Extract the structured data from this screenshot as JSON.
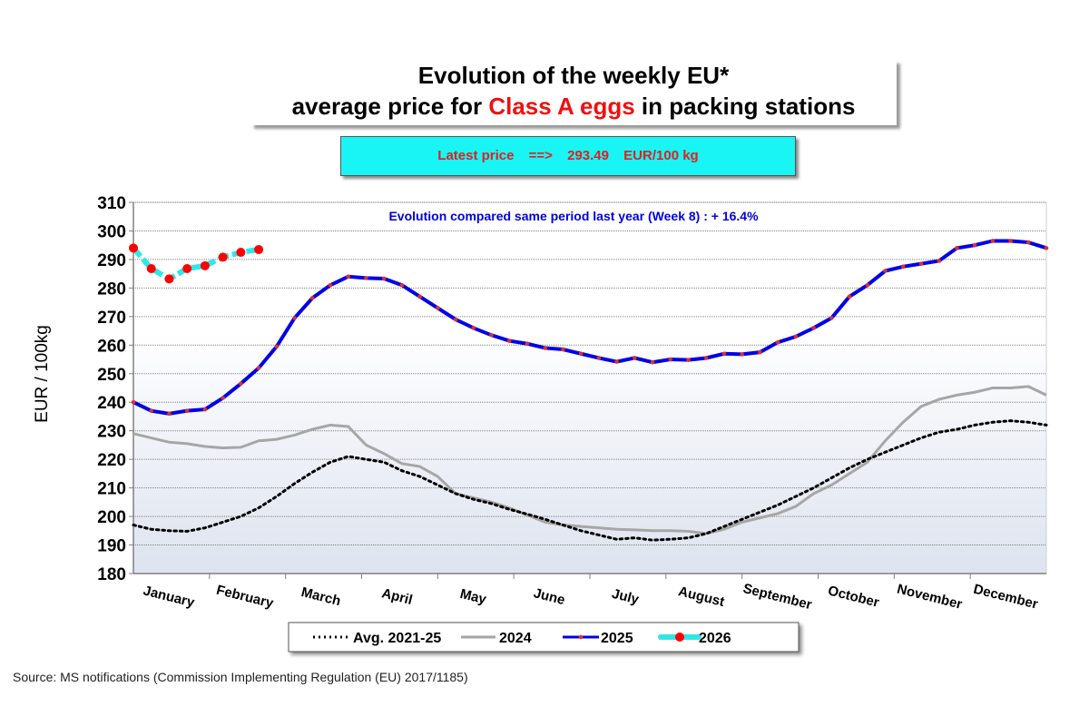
{
  "title": {
    "line1": "Evolution of the weekly EU*",
    "line2_pre": "average price for ",
    "line2_highlight": "Class A eggs",
    "line2_post": " in packing stations"
  },
  "latest": {
    "label": "Latest price",
    "arrow": "==>",
    "value": "293.49",
    "unit": "EUR/100 kg"
  },
  "source": "Source: MS notifications (Commission Implementing Regulation (EU) 2017/1185)",
  "chart_data": {
    "type": "line",
    "title": "Evolution of the weekly EU* average price for Class A eggs in packing stations",
    "annotation": "Evolution compared same period last year (Week 8) : + 16.4%",
    "ylabel": "EUR / 100kg",
    "xlabel": "",
    "ylim": [
      180,
      310
    ],
    "yticks": [
      180,
      190,
      200,
      210,
      220,
      230,
      240,
      250,
      260,
      270,
      280,
      290,
      300,
      310
    ],
    "x_weeks": 52,
    "months": [
      "January",
      "February",
      "March",
      "April",
      "May",
      "June",
      "July",
      "August",
      "September",
      "October",
      "November",
      "December"
    ],
    "grid": true,
    "legend_position": "bottom",
    "series": [
      {
        "name": "Avg. 2021-25",
        "color": "#000000",
        "style": "dotted",
        "values": [
          197,
          195.5,
          195,
          194.8,
          196,
          198,
          200,
          203,
          207,
          211.5,
          215.5,
          219,
          221,
          220,
          219,
          216,
          214,
          211,
          208,
          206,
          204.5,
          202.5,
          200.8,
          199,
          197,
          195,
          193.5,
          192,
          192.5,
          191.7,
          192,
          192.5,
          194,
          196.5,
          199,
          201.5,
          204,
          207,
          210,
          213.5,
          217,
          220,
          222.5,
          225,
          227.5,
          229.5,
          230.5,
          232,
          233,
          233.5,
          233,
          232
        ]
      },
      {
        "name": "2024",
        "color": "#a6a6a6",
        "style": "solid",
        "values": [
          229,
          227.5,
          226,
          225.5,
          224.5,
          224,
          224.2,
          226.5,
          227,
          228.5,
          230.5,
          232,
          231.5,
          225,
          222,
          218.5,
          217.5,
          214,
          208,
          206.5,
          205,
          203,
          200.5,
          198,
          197,
          196.5,
          196,
          195.5,
          195.3,
          195,
          195,
          194.8,
          194,
          195.5,
          198,
          199.5,
          201,
          203.5,
          208,
          211,
          215,
          219,
          226.5,
          233,
          238.5,
          241,
          242.5,
          243.5,
          245,
          245,
          245.5,
          242.5
        ]
      },
      {
        "name": "2025",
        "color": "#0000e6",
        "marker_color": "#e03030",
        "style": "solid-marker",
        "values": [
          240,
          237,
          236,
          237,
          237.5,
          241.5,
          246.5,
          252,
          259.5,
          269.5,
          276.5,
          281,
          284,
          283.5,
          283.3,
          281,
          277,
          273,
          269,
          266,
          263.5,
          261.5,
          260.5,
          259,
          258.5,
          257,
          255.5,
          254.2,
          255.5,
          254,
          255,
          254.8,
          255.5,
          257,
          256.8,
          257.5,
          261,
          263,
          266,
          269.5,
          277,
          281,
          286,
          287.5,
          288.5,
          289.5,
          294,
          295,
          296.5,
          296.5,
          296,
          294
        ]
      },
      {
        "name": "2026",
        "color": "#33e6e6",
        "marker_color": "#ff0000",
        "style": "dashed-marker",
        "values": [
          294,
          286.8,
          283.2,
          286.8,
          287.8,
          290.8,
          292.5,
          293.49
        ]
      }
    ]
  }
}
